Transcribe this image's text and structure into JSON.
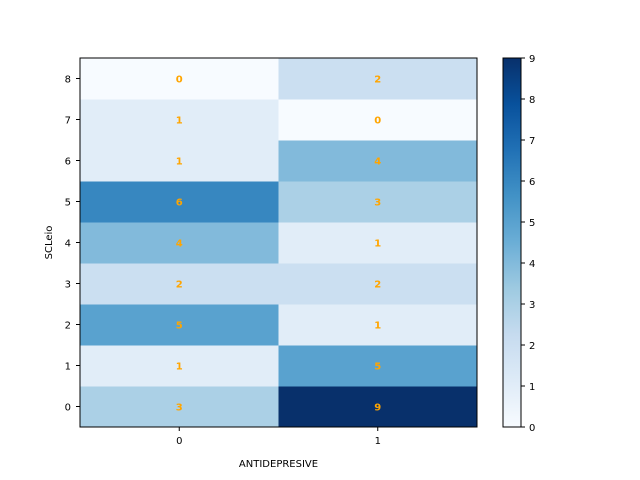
{
  "chart_data": {
    "type": "heatmap",
    "title": "",
    "xlabel": "ANTIDEPRESIVE",
    "ylabel": "SCLeio",
    "x_categories": [
      "0",
      "1"
    ],
    "y_categories": [
      "0",
      "1",
      "2",
      "3",
      "4",
      "5",
      "6",
      "7",
      "8"
    ],
    "values": [
      [
        3,
        9
      ],
      [
        1,
        5
      ],
      [
        5,
        1
      ],
      [
        2,
        2
      ],
      [
        4,
        1
      ],
      [
        6,
        3
      ],
      [
        1,
        4
      ],
      [
        1,
        0
      ],
      [
        0,
        2
      ]
    ],
    "colorbar": {
      "min": 0,
      "max": 9,
      "ticks": [
        "0",
        "1",
        "2",
        "3",
        "4",
        "5",
        "6",
        "7",
        "8",
        "9"
      ]
    },
    "colormap": "Blues",
    "annotation_color": "#ffa500",
    "grid": false
  }
}
